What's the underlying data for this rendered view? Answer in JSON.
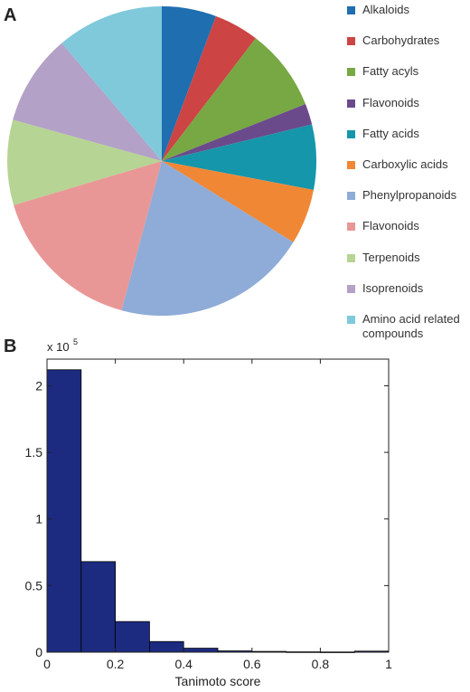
{
  "panels": {
    "a_label": "A",
    "b_label": "B"
  },
  "chart_data": [
    {
      "type": "pie",
      "slices": [
        {
          "label": "Alkaloids",
          "value": 5.7,
          "color": "#1f6eb0"
        },
        {
          "label": "Carbohydrates",
          "value": 4.7,
          "color": "#cc4444"
        },
        {
          "label": "Fatty acyls",
          "value": 8.6,
          "color": "#77a843"
        },
        {
          "label": "Flavonoids",
          "value": 2.2,
          "color": "#6b4a8c"
        },
        {
          "label": "Fatty acids",
          "value": 6.8,
          "color": "#1596aa"
        },
        {
          "label": "Carboxylic acids",
          "value": 5.8,
          "color": "#f08735"
        },
        {
          "label": "Phenylpropanoids",
          "value": 20.4,
          "color": "#8eacd7"
        },
        {
          "label": "Flavonoids",
          "value": 16.2,
          "color": "#e99796"
        },
        {
          "label": "Terpenoids",
          "value": 8.9,
          "color": "#b6d493"
        },
        {
          "label": "Isoprenoids",
          "value": 9.5,
          "color": "#b3a1c7"
        },
        {
          "label": "Amino acid related compounds",
          "value": 11.2,
          "color": "#7fc9db"
        }
      ],
      "legend_position": "right"
    },
    {
      "type": "bar",
      "subtype": "histogram",
      "bin_edges": [
        0,
        0.1,
        0.2,
        0.3,
        0.4,
        0.5,
        0.6,
        0.7,
        0.8,
        0.9,
        1.0
      ],
      "values": [
        212000,
        68000,
        23000,
        8000,
        3000,
        1000,
        600,
        300,
        200,
        800
      ],
      "xlabel": "Tanimoto score",
      "ylabel": "",
      "xlim": [
        0,
        1
      ],
      "ylim": [
        0,
        220000
      ],
      "xticks": [
        "0",
        "0.2",
        "0.4",
        "0.6",
        "0.8",
        "1"
      ],
      "yticks": [
        "0",
        "0.5",
        "1",
        "1.5",
        "2"
      ],
      "y_multiplier_base": "x 10",
      "y_multiplier_exponent": "5",
      "bar_color": "#1c2a80",
      "grid": false
    }
  ]
}
